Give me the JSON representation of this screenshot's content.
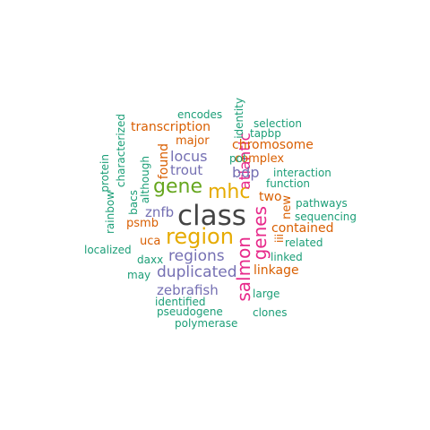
{
  "palette": {
    "teal": "#1b9e77",
    "orange": "#d95f02",
    "purple": "#7570b3",
    "magenta": "#e7298a",
    "green": "#66a61e",
    "gold": "#e6ab02",
    "gray": "#666666",
    "dark": "#444444"
  },
  "words": {
    "class": "class",
    "region": "region",
    "mhc": "mhc",
    "gene": "gene",
    "genes": "genes",
    "salmon": "salmon",
    "regions": "regions",
    "duplicated": "duplicated",
    "zebrafish": "zebrafish",
    "atlantic": "atlantic",
    "locus": "locus",
    "trout": "trout",
    "found": "found",
    "bdp": "bdp",
    "znfb": "znfb",
    "transcription": "transcription",
    "encodes": "encodes",
    "identity": "identity",
    "selection": "selection",
    "tapbp": "tapbp",
    "major": "major",
    "chromosome": "chromosome",
    "pol": "pol",
    "complex": "complex",
    "interaction": "interaction",
    "function": "function",
    "two": "two",
    "new": "new",
    "pathways": "pathways",
    "sequencing": "sequencing",
    "contained": "contained",
    "iii": "iii",
    "related": "related",
    "linked": "linked",
    "linkage": "linkage",
    "large": "large",
    "clones": "clones",
    "polymerase": "polymerase",
    "pseudogene": "pseudogene",
    "identified": "identified",
    "may": "may",
    "daxx": "daxx",
    "uca": "uca",
    "psmb": "psmb",
    "localized": "localized",
    "bacs": "bacs",
    "although": "although",
    "characterized": "characterized",
    "protein": "protein",
    "rainbow": "rainbow"
  }
}
